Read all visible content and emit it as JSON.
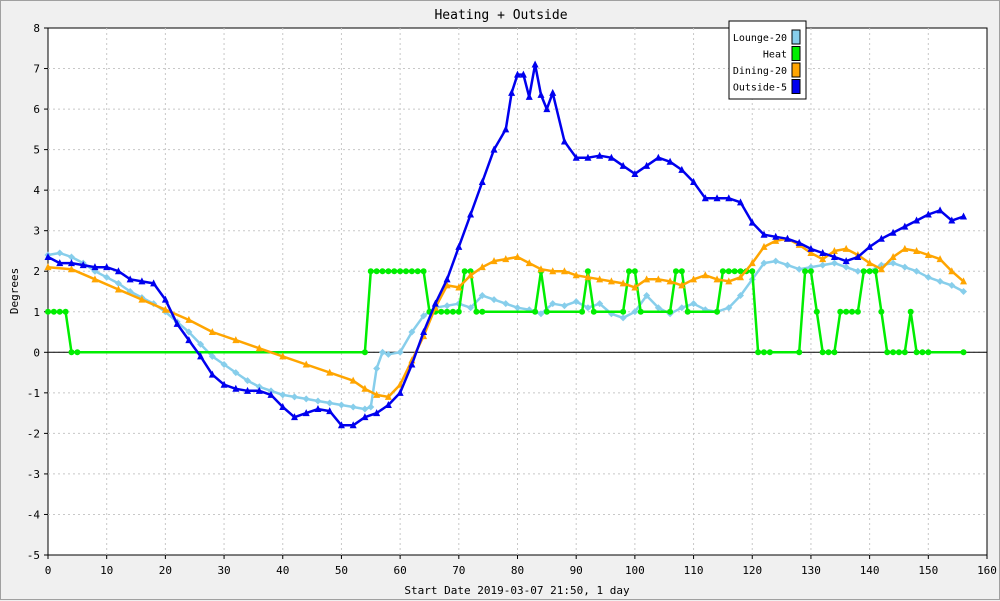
{
  "chart_data": {
    "type": "line",
    "title": "Heating + Outside",
    "xlabel": "Start Date 2019-03-07 21:50, 1 day",
    "ylabel": "Degrees",
    "xlim": [
      0,
      160
    ],
    "ylim": [
      -5,
      8
    ],
    "xticks": [
      0,
      10,
      20,
      30,
      40,
      50,
      60,
      70,
      80,
      90,
      100,
      110,
      120,
      130,
      140,
      150,
      160
    ],
    "yticks": [
      -5,
      -4,
      -3,
      -2,
      -1,
      0,
      1,
      2,
      3,
      4,
      5,
      6,
      7,
      8
    ],
    "grid": true,
    "legend_position": "top-right",
    "series": [
      {
        "name": "Lounge-20",
        "color": "#87ceeb",
        "marker": "diamond",
        "x": [
          0,
          2,
          4,
          6,
          8,
          10,
          12,
          14,
          16,
          18,
          20,
          22,
          24,
          26,
          28,
          30,
          32,
          34,
          36,
          38,
          40,
          42,
          44,
          46,
          48,
          50,
          52,
          54,
          55,
          56,
          57,
          58,
          60,
          62,
          64,
          66,
          68,
          70,
          72,
          74,
          76,
          78,
          80,
          82,
          84,
          86,
          88,
          90,
          92,
          94,
          96,
          98,
          100,
          102,
          104,
          106,
          108,
          110,
          112,
          114,
          116,
          118,
          120,
          122,
          124,
          126,
          128,
          130,
          132,
          134,
          136,
          138,
          140,
          142,
          144,
          146,
          148,
          150,
          152,
          154,
          156
        ],
        "y": [
          2.4,
          2.45,
          2.35,
          2.2,
          2.0,
          1.85,
          1.7,
          1.5,
          1.35,
          1.2,
          1.0,
          0.75,
          0.5,
          0.2,
          -0.1,
          -0.3,
          -0.5,
          -0.7,
          -0.85,
          -0.95,
          -1.05,
          -1.1,
          -1.15,
          -1.2,
          -1.25,
          -1.3,
          -1.35,
          -1.4,
          -1.35,
          -0.4,
          0.0,
          -0.05,
          0.0,
          0.5,
          0.9,
          1.1,
          1.15,
          1.2,
          1.1,
          1.4,
          1.3,
          1.2,
          1.1,
          1.05,
          0.95,
          1.2,
          1.15,
          1.25,
          1.1,
          1.2,
          0.95,
          0.85,
          1.0,
          1.4,
          1.1,
          0.95,
          1.1,
          1.2,
          1.05,
          1.0,
          1.1,
          1.4,
          1.8,
          2.2,
          2.25,
          2.15,
          2.05,
          2.1,
          2.15,
          2.2,
          2.1,
          2.0,
          2.0,
          2.15,
          2.2,
          2.1,
          2.0,
          1.85,
          1.75,
          1.65,
          1.5
        ]
      },
      {
        "name": "Heat",
        "color": "#00ee00",
        "marker": "circle",
        "x": [
          0,
          1,
          2,
          3,
          4,
          5,
          54,
          55,
          56,
          57,
          58,
          59,
          60,
          61,
          62,
          63,
          64,
          65,
          66,
          67,
          68,
          69,
          70,
          71,
          72,
          73,
          74,
          83,
          84,
          85,
          91,
          92,
          93,
          98,
          99,
          100,
          101,
          106,
          107,
          108,
          109,
          114,
          115,
          116,
          117,
          118,
          119,
          120,
          121,
          122,
          123,
          128,
          129,
          130,
          131,
          132,
          133,
          134,
          135,
          136,
          137,
          138,
          139,
          140,
          141,
          142,
          143,
          144,
          145,
          146,
          147,
          148,
          149,
          150,
          156
        ],
        "y": [
          1,
          1,
          1,
          1,
          0,
          0,
          0,
          2,
          2,
          2,
          2,
          2,
          2,
          2,
          2,
          2,
          2,
          1,
          1,
          1,
          1,
          1,
          1,
          2,
          2,
          1,
          1,
          1,
          2,
          1,
          1,
          2,
          1,
          1,
          2,
          2,
          1,
          1,
          2,
          2,
          1,
          1,
          2,
          2,
          2,
          2,
          2,
          2,
          0,
          0,
          0,
          0,
          2,
          2,
          1,
          0,
          0,
          0,
          1,
          1,
          1,
          1,
          2,
          2,
          2,
          1,
          0,
          0,
          0,
          0,
          1,
          0,
          0,
          0,
          0
        ]
      },
      {
        "name": "Dining-20",
        "color": "#ffa500",
        "marker": "triangle",
        "x": [
          0,
          4,
          8,
          12,
          16,
          20,
          24,
          28,
          32,
          36,
          40,
          44,
          48,
          52,
          54,
          56,
          58,
          60,
          62,
          64,
          66,
          68,
          70,
          72,
          74,
          76,
          78,
          80,
          82,
          84,
          86,
          88,
          90,
          92,
          94,
          96,
          98,
          100,
          102,
          104,
          106,
          108,
          110,
          112,
          114,
          116,
          118,
          120,
          122,
          124,
          126,
          128,
          130,
          132,
          134,
          136,
          138,
          140,
          142,
          144,
          146,
          148,
          150,
          152,
          154,
          156
        ],
        "y": [
          2.1,
          2.05,
          1.8,
          1.55,
          1.3,
          1.05,
          0.8,
          0.5,
          0.3,
          0.1,
          -0.1,
          -0.3,
          -0.5,
          -0.7,
          -0.9,
          -1.05,
          -1.1,
          -0.8,
          -0.2,
          0.4,
          1.1,
          1.65,
          1.6,
          1.9,
          2.1,
          2.25,
          2.3,
          2.35,
          2.2,
          2.05,
          2.0,
          2.0,
          1.9,
          1.85,
          1.8,
          1.75,
          1.7,
          1.6,
          1.8,
          1.8,
          1.75,
          1.65,
          1.8,
          1.9,
          1.8,
          1.75,
          1.85,
          2.2,
          2.6,
          2.75,
          2.8,
          2.65,
          2.45,
          2.3,
          2.5,
          2.55,
          2.4,
          2.2,
          2.05,
          2.35,
          2.55,
          2.5,
          2.4,
          2.3,
          2.0,
          1.75
        ]
      },
      {
        "name": "Outside-5",
        "color": "#0000ee",
        "marker": "triangle",
        "x": [
          0,
          2,
          4,
          6,
          8,
          10,
          12,
          14,
          16,
          18,
          20,
          22,
          24,
          26,
          28,
          30,
          32,
          34,
          36,
          38,
          40,
          42,
          44,
          46,
          48,
          50,
          52,
          54,
          56,
          58,
          60,
          62,
          64,
          66,
          68,
          70,
          72,
          74,
          76,
          78,
          79,
          80,
          81,
          82,
          83,
          84,
          85,
          86,
          88,
          90,
          92,
          94,
          96,
          98,
          100,
          102,
          104,
          106,
          108,
          110,
          112,
          114,
          116,
          118,
          120,
          122,
          124,
          126,
          128,
          130,
          132,
          134,
          136,
          138,
          140,
          142,
          144,
          146,
          148,
          150,
          152,
          154,
          156
        ],
        "y": [
          2.35,
          2.2,
          2.2,
          2.15,
          2.1,
          2.1,
          2.0,
          1.8,
          1.75,
          1.7,
          1.3,
          0.7,
          0.3,
          -0.1,
          -0.55,
          -0.8,
          -0.9,
          -0.95,
          -0.95,
          -1.05,
          -1.35,
          -1.6,
          -1.5,
          -1.4,
          -1.45,
          -1.8,
          -1.8,
          -1.6,
          -1.5,
          -1.3,
          -1.0,
          -0.3,
          0.5,
          1.2,
          1.8,
          2.6,
          3.4,
          4.2,
          5.0,
          5.5,
          6.4,
          6.85,
          6.85,
          6.3,
          7.1,
          6.35,
          6.0,
          6.4,
          5.2,
          4.8,
          4.8,
          4.85,
          4.8,
          4.6,
          4.4,
          4.6,
          4.8,
          4.7,
          4.5,
          4.2,
          3.8,
          3.8,
          3.8,
          3.7,
          3.2,
          2.9,
          2.85,
          2.8,
          2.7,
          2.55,
          2.45,
          2.35,
          2.25,
          2.35,
          2.6,
          2.8,
          2.95,
          3.1,
          3.25,
          3.4,
          3.5,
          3.25,
          3.35
        ]
      }
    ]
  }
}
